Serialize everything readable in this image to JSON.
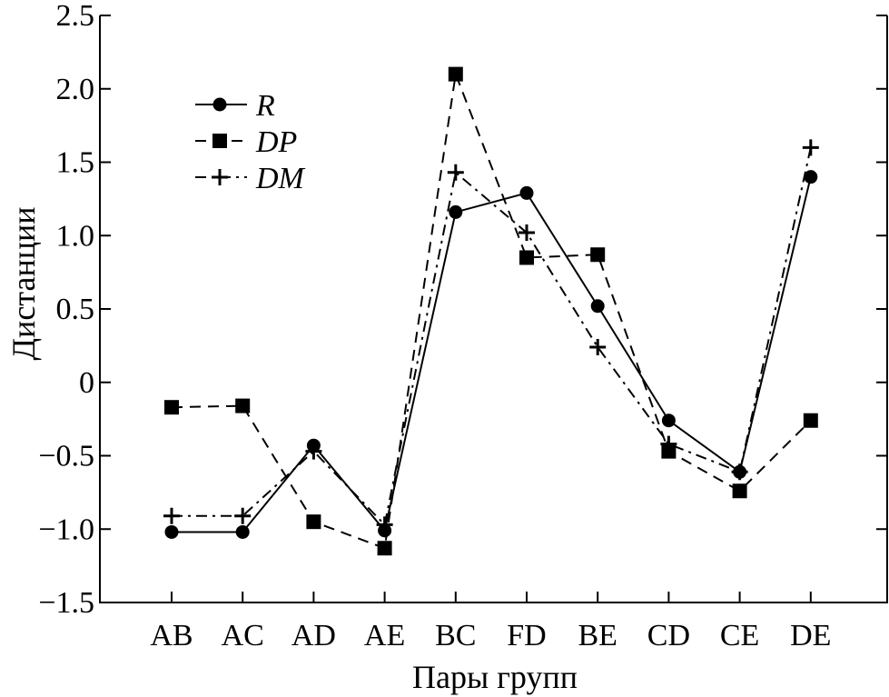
{
  "chart_data": {
    "type": "line",
    "title": "",
    "xlabel": "Пары групп",
    "ylabel": "Дистанции",
    "categories": [
      "AB",
      "AC",
      "AD",
      "AE",
      "BC",
      "FD",
      "BE",
      "CD",
      "CE",
      "DE"
    ],
    "ylim": [
      -1.5,
      2.5
    ],
    "yticks": [
      "2.5",
      "2.0",
      "1.5",
      "1.0",
      "0.5",
      "0",
      "−0.5",
      "−1.0",
      "−1.5"
    ],
    "ytick_values": [
      2.5,
      2.0,
      1.5,
      1.0,
      0.5,
      0,
      -0.5,
      -1.0,
      -1.5
    ],
    "grid": false,
    "legend_position": "top-left",
    "series": [
      {
        "name": "R",
        "marker": "circle",
        "line": "solid",
        "values": [
          -1.02,
          -1.02,
          -0.43,
          -1.01,
          1.16,
          1.29,
          0.52,
          -0.26,
          -0.61,
          1.4
        ]
      },
      {
        "name": "DP",
        "marker": "square",
        "line": "dashed",
        "values": [
          -0.17,
          -0.16,
          -0.95,
          -1.13,
          2.1,
          0.85,
          0.87,
          -0.47,
          -0.74,
          -0.26
        ]
      },
      {
        "name": "DM",
        "marker": "plus",
        "line": "dash-dot",
        "values": [
          -0.91,
          -0.91,
          -0.47,
          -0.97,
          1.43,
          1.02,
          0.24,
          -0.42,
          -0.61,
          1.6
        ]
      }
    ]
  }
}
